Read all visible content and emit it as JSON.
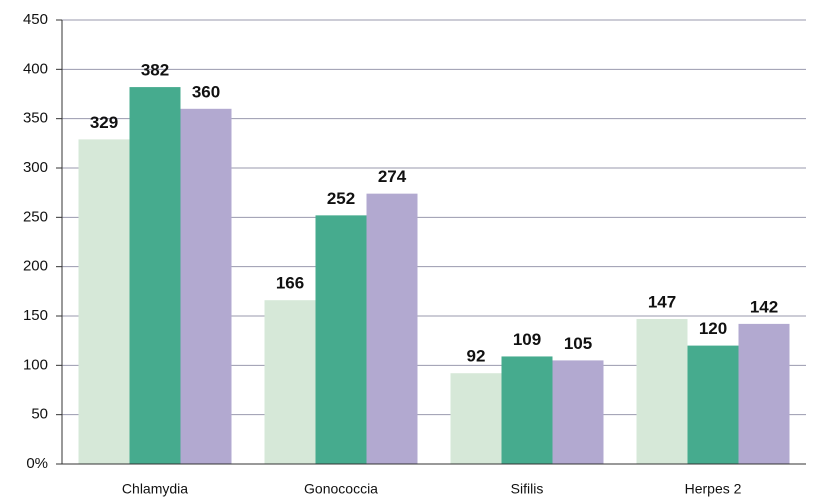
{
  "chart_data": {
    "type": "bar",
    "categories": [
      "Chlamydia",
      "Gonococcia",
      "Sifilis",
      "Herpes 2"
    ],
    "series": [
      {
        "color": "#d6e8d8",
        "values": [
          329,
          166,
          92,
          147
        ]
      },
      {
        "color": "#46ab8e",
        "values": [
          382,
          252,
          109,
          120
        ]
      },
      {
        "color": "#b2a9d0",
        "values": [
          360,
          274,
          105,
          142
        ]
      }
    ],
    "ylim": [
      0,
      450
    ],
    "yticks": [
      {
        "value": 0,
        "label": "0%"
      },
      50,
      100,
      150,
      200,
      250,
      300,
      350,
      400,
      450
    ],
    "grid": true
  }
}
